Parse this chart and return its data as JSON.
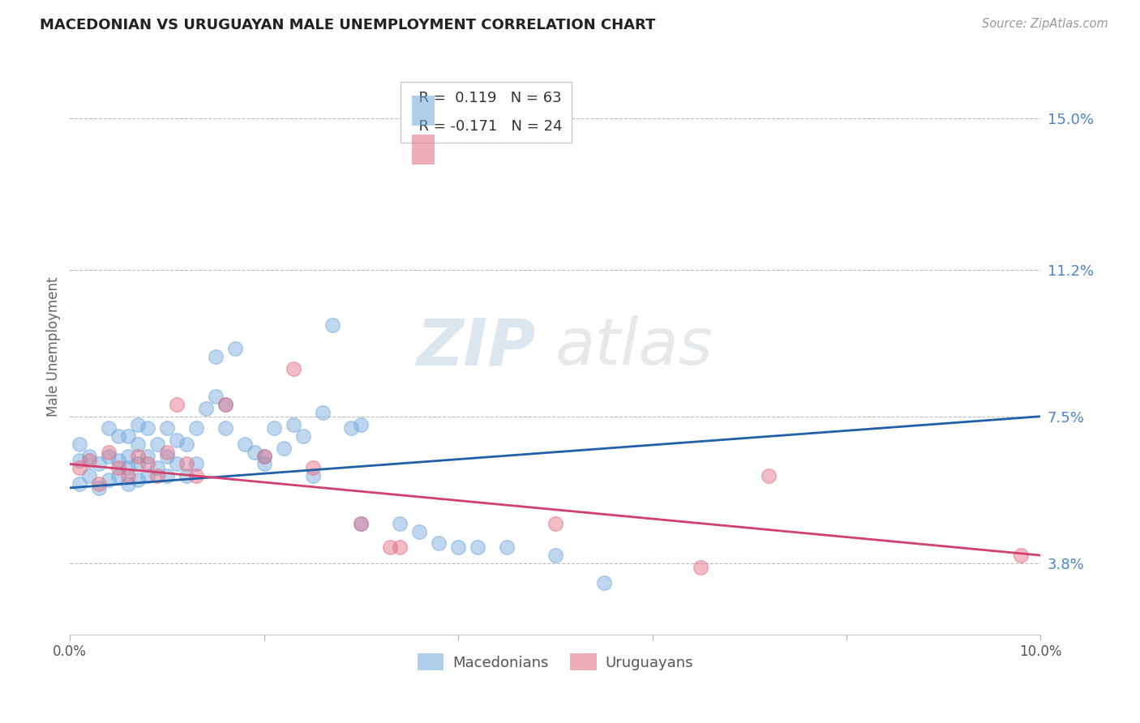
{
  "title": "MACEDONIAN VS URUGUAYAN MALE UNEMPLOYMENT CORRELATION CHART",
  "source": "Source: ZipAtlas.com",
  "ylabel": "Male Unemployment",
  "xlim": [
    0.0,
    0.1
  ],
  "ylim": [
    0.02,
    0.165
  ],
  "yticks": [
    0.038,
    0.075,
    0.112,
    0.15
  ],
  "ytick_labels": [
    "3.8%",
    "7.5%",
    "11.2%",
    "15.0%"
  ],
  "xticks": [
    0.0,
    0.02,
    0.04,
    0.06,
    0.08,
    0.1
  ],
  "xtick_labels": [
    "0.0%",
    "",
    "",
    "",
    "",
    "10.0%"
  ],
  "macedonian_color": "#6fa8dc",
  "uruguayan_color": "#e06c80",
  "line_macedonian_color": "#2060a8",
  "line_uruguayan_color": "#d04070",
  "watermark_color": "#c8d8e8",
  "legend_R_mac": "R =  0.119",
  "legend_N_mac": "N = 63",
  "legend_R_uru": "R = -0.171",
  "legend_N_uru": "N = 24",
  "mac_line_x": [
    0.0,
    0.1
  ],
  "mac_line_y": [
    0.057,
    0.075
  ],
  "uru_line_x": [
    0.0,
    0.1
  ],
  "uru_line_y": [
    0.063,
    0.04
  ],
  "macedonian_x": [
    0.001,
    0.001,
    0.001,
    0.002,
    0.002,
    0.003,
    0.003,
    0.004,
    0.004,
    0.004,
    0.005,
    0.005,
    0.005,
    0.006,
    0.006,
    0.006,
    0.006,
    0.007,
    0.007,
    0.007,
    0.007,
    0.008,
    0.008,
    0.008,
    0.009,
    0.009,
    0.01,
    0.01,
    0.01,
    0.011,
    0.011,
    0.012,
    0.012,
    0.013,
    0.013,
    0.014,
    0.015,
    0.015,
    0.016,
    0.017,
    0.018,
    0.019,
    0.02,
    0.021,
    0.022,
    0.023,
    0.024,
    0.026,
    0.027,
    0.029,
    0.03,
    0.034,
    0.036,
    0.04,
    0.016,
    0.02,
    0.025,
    0.03,
    0.038,
    0.042,
    0.045,
    0.05,
    0.055
  ],
  "macedonian_y": [
    0.058,
    0.064,
    0.068,
    0.06,
    0.065,
    0.057,
    0.063,
    0.059,
    0.065,
    0.072,
    0.06,
    0.064,
    0.07,
    0.058,
    0.062,
    0.065,
    0.07,
    0.059,
    0.063,
    0.068,
    0.073,
    0.06,
    0.065,
    0.072,
    0.062,
    0.068,
    0.06,
    0.065,
    0.072,
    0.063,
    0.069,
    0.06,
    0.068,
    0.063,
    0.072,
    0.077,
    0.08,
    0.09,
    0.072,
    0.092,
    0.068,
    0.066,
    0.065,
    0.072,
    0.067,
    0.073,
    0.07,
    0.076,
    0.098,
    0.072,
    0.073,
    0.048,
    0.046,
    0.042,
    0.078,
    0.063,
    0.06,
    0.048,
    0.043,
    0.042,
    0.042,
    0.04,
    0.033
  ],
  "uruguayan_x": [
    0.001,
    0.002,
    0.003,
    0.004,
    0.005,
    0.006,
    0.007,
    0.008,
    0.009,
    0.01,
    0.011,
    0.012,
    0.013,
    0.016,
    0.02,
    0.023,
    0.025,
    0.03,
    0.033,
    0.034,
    0.05,
    0.065,
    0.072,
    0.098
  ],
  "uruguayan_y": [
    0.062,
    0.064,
    0.058,
    0.066,
    0.062,
    0.06,
    0.065,
    0.063,
    0.06,
    0.066,
    0.078,
    0.063,
    0.06,
    0.078,
    0.065,
    0.087,
    0.062,
    0.048,
    0.042,
    0.042,
    0.048,
    0.037,
    0.06,
    0.04
  ]
}
